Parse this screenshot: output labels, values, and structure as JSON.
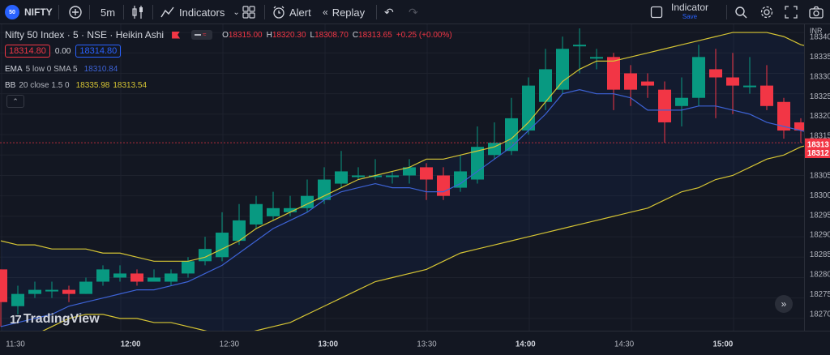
{
  "toolbar": {
    "symbol_badge": "50",
    "symbol": "NIFTY",
    "add_icon": "plus-circle-icon",
    "interval": "5m",
    "chart_type_icon": "candles-icon",
    "indicators_label": "Indicators",
    "alert_label": "Alert",
    "replay_label": "Replay",
    "layout_name": "Indicator",
    "layout_save": "Save"
  },
  "legend": {
    "title": "Nifty 50 Index · 5 · NSE · Heikin Ashi",
    "o_label": "O",
    "o": "18315.00",
    "h_label": "H",
    "h": "18320.30",
    "l_label": "L",
    "l": "18308.70",
    "c_label": "C",
    "c": "18313.65",
    "change": "+0.25 (+0.00%)",
    "bid": "18314.80",
    "spread": "0.00",
    "ask": "18314.80",
    "ema_name": "EMA",
    "ema_params": "5 low 0 SMA 5",
    "ema_value": "18310.84",
    "bb_name": "BB",
    "bb_params": "20 close 1.5 0",
    "bb_upper": "18335.98",
    "bb_lower": "18313.54"
  },
  "watermark": "TradingView",
  "currency": "INR",
  "colors": {
    "background": "#131722",
    "up": "#089981",
    "down": "#f23645",
    "bb": "#d6c534",
    "ema": "#3d63d6",
    "grid": "#1e222d"
  },
  "chart_data": {
    "type": "candlestick",
    "x_labels": [
      "11:30",
      "12:00",
      "12:30",
      "13:00",
      "13:30",
      "14:00",
      "14:30",
      "15:00"
    ],
    "y_ticks": [
      18270,
      18275,
      18280,
      18285,
      18290,
      18295,
      18300,
      18305,
      18310,
      18315,
      18320,
      18325,
      18330,
      18335,
      18340
    ],
    "ylim": [
      18267,
      18342
    ],
    "price_labels": [
      "18313",
      "18312"
    ],
    "candles": [
      {
        "o": 18282,
        "c": 18274,
        "h": 18282,
        "l": 18268
      },
      {
        "o": 18273,
        "c": 18276,
        "h": 18278,
        "l": 18271
      },
      {
        "o": 18276,
        "c": 18277,
        "h": 18279,
        "l": 18275
      },
      {
        "o": 18277,
        "c": 18277,
        "h": 18279,
        "l": 18275
      },
      {
        "o": 18277,
        "c": 18276,
        "h": 18278,
        "l": 18274
      },
      {
        "o": 18276,
        "c": 18279,
        "h": 18280,
        "l": 18276
      },
      {
        "o": 18279,
        "c": 18282,
        "h": 18283,
        "l": 18278
      },
      {
        "o": 18280,
        "c": 18281,
        "h": 18283,
        "l": 18279
      },
      {
        "o": 18281,
        "c": 18279,
        "h": 18282,
        "l": 18278
      },
      {
        "o": 18279,
        "c": 18280,
        "h": 18282,
        "l": 18279
      },
      {
        "o": 18279,
        "c": 18281,
        "h": 18282,
        "l": 18278
      },
      {
        "o": 18281,
        "c": 18284,
        "h": 18285,
        "l": 18280
      },
      {
        "o": 18284,
        "c": 18287,
        "h": 18290,
        "l": 18283
      },
      {
        "o": 18285,
        "c": 18291,
        "h": 18296,
        "l": 18284
      },
      {
        "o": 18289,
        "c": 18294,
        "h": 18298,
        "l": 18288
      },
      {
        "o": 18293,
        "c": 18298,
        "h": 18300,
        "l": 18292
      },
      {
        "o": 18295,
        "c": 18297,
        "h": 18301,
        "l": 18294
      },
      {
        "o": 18296,
        "c": 18297,
        "h": 18300,
        "l": 18295
      },
      {
        "o": 18297,
        "c": 18300,
        "h": 18304,
        "l": 18296
      },
      {
        "o": 18299,
        "c": 18304,
        "h": 18307,
        "l": 18298
      },
      {
        "o": 18303,
        "c": 18306,
        "h": 18311,
        "l": 18302
      },
      {
        "o": 18305,
        "c": 18305,
        "h": 18307,
        "l": 18304
      },
      {
        "o": 18305,
        "c": 18305,
        "h": 18309,
        "l": 18304
      },
      {
        "o": 18305,
        "c": 18305,
        "h": 18306,
        "l": 18303
      },
      {
        "o": 18305,
        "c": 18307,
        "h": 18309,
        "l": 18303
      },
      {
        "o": 18307,
        "c": 18304,
        "h": 18308,
        "l": 18299
      },
      {
        "o": 18305,
        "c": 18300,
        "h": 18307,
        "l": 18299
      },
      {
        "o": 18302,
        "c": 18306,
        "h": 18310,
        "l": 18301
      },
      {
        "o": 18304,
        "c": 18312,
        "h": 18317,
        "l": 18303
      },
      {
        "o": 18310,
        "c": 18313,
        "h": 18318,
        "l": 18309
      },
      {
        "o": 18311,
        "c": 18319,
        "h": 18324,
        "l": 18310
      },
      {
        "o": 18316,
        "c": 18327,
        "h": 18329,
        "l": 18315
      },
      {
        "o": 18323,
        "c": 18331,
        "h": 18336,
        "l": 18321
      },
      {
        "o": 18326,
        "c": 18336,
        "h": 18339,
        "l": 18325
      },
      {
        "o": 18337,
        "c": 18337,
        "h": 18341,
        "l": 18330
      },
      {
        "o": 18334,
        "c": 18334,
        "h": 18336,
        "l": 18331
      },
      {
        "o": 18334,
        "c": 18326,
        "h": 18335,
        "l": 18321
      },
      {
        "o": 18330,
        "c": 18326,
        "h": 18332,
        "l": 18322
      },
      {
        "o": 18328,
        "c": 18327,
        "h": 18330,
        "l": 18324
      },
      {
        "o": 18326,
        "c": 18318,
        "h": 18328,
        "l": 18313
      },
      {
        "o": 18322,
        "c": 18324,
        "h": 18329,
        "l": 18317
      },
      {
        "o": 18324,
        "c": 18334,
        "h": 18337,
        "l": 18322
      },
      {
        "o": 18331,
        "c": 18329,
        "h": 18336,
        "l": 18319
      },
      {
        "o": 18329,
        "c": 18327,
        "h": 18335,
        "l": 18320
      },
      {
        "o": 18327,
        "c": 18327,
        "h": 18334,
        "l": 18325
      },
      {
        "o": 18327,
        "c": 18322,
        "h": 18332,
        "l": 18321
      },
      {
        "o": 18323,
        "c": 18316,
        "h": 18324,
        "l": 18314
      },
      {
        "o": 18318,
        "c": 18316,
        "h": 18319,
        "l": 18313
      },
      {
        "o": 18317,
        "c": 18313,
        "h": 18318,
        "l": 18311
      },
      {
        "o": 18315,
        "c": 18313,
        "h": 18316,
        "l": 18311
      }
    ],
    "bb_upper": [
      18289,
      18288,
      18288,
      18287,
      18287,
      18287,
      18286,
      18286,
      18285,
      18284,
      18284,
      18284,
      18285,
      18287,
      18289,
      18292,
      18294,
      18296,
      18298,
      18300,
      18302,
      18304,
      18305,
      18306,
      18307,
      18309,
      18309,
      18310,
      18311,
      18312,
      18314,
      18318,
      18323,
      18328,
      18331,
      18333,
      18333,
      18334,
      18335,
      18336,
      18337,
      18338,
      18339,
      18340,
      18340,
      18340,
      18339,
      18337,
      18336,
      18336
    ],
    "bb_lower": [
      18266,
      18265,
      18266,
      18268,
      18270,
      18271,
      18271,
      18270,
      18270,
      18269,
      18269,
      18268,
      18267,
      18266,
      18266,
      18267,
      18268,
      18269,
      18271,
      18273,
      18275,
      18277,
      18279,
      18280,
      18281,
      18282,
      18284,
      18286,
      18287,
      18288,
      18289,
      18290,
      18291,
      18292,
      18293,
      18294,
      18295,
      18296,
      18297,
      18299,
      18301,
      18302,
      18304,
      18305,
      18307,
      18309,
      18310,
      18312,
      18313,
      18313
    ],
    "ema": [
      18268,
      18269,
      18270,
      18271,
      18273,
      18274,
      18275,
      18276,
      18277,
      18277,
      18278,
      18279,
      18281,
      18283,
      18286,
      18289,
      18292,
      18294,
      18296,
      18299,
      18301,
      18302,
      18303,
      18302,
      18302,
      18301,
      18301,
      18303,
      18306,
      18309,
      18312,
      18316,
      18320,
      18325,
      18326,
      18325,
      18325,
      18324,
      18321,
      18321,
      18321,
      18322,
      18322,
      18321,
      18320,
      18318,
      18317,
      18316,
      18315,
      18314
    ]
  }
}
